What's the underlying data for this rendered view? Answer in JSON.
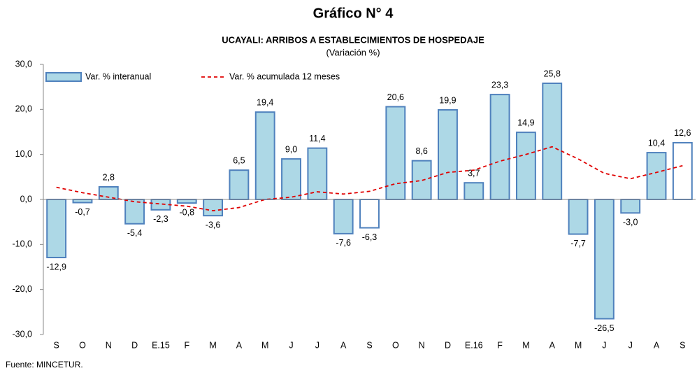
{
  "chart_data": {
    "type": "bar",
    "title": "Gráfico N° 4",
    "subtitle": "UCAYALI: ARRIBOS A ESTABLECIMIENTOS DE HOSPEDAJE",
    "unit_note": "(Variación %)",
    "source": "Fuente: MINCETUR.",
    "categories": [
      "S",
      "O",
      "N",
      "D",
      "E.15",
      "F",
      "M",
      "A",
      "M",
      "J",
      "J",
      "A",
      "S",
      "O",
      "N",
      "D",
      "E.16",
      "F",
      "M",
      "A",
      "M",
      "J",
      "J",
      "A",
      "S"
    ],
    "ylim": [
      -30,
      30
    ],
    "yticks": [
      {
        "value": -30,
        "label": "-30,0"
      },
      {
        "value": -20,
        "label": "-20,0"
      },
      {
        "value": -10,
        "label": "-10,0"
      },
      {
        "value": 0,
        "label": "0,0"
      },
      {
        "value": 10,
        "label": "10,0"
      },
      {
        "value": 20,
        "label": "20,0"
      },
      {
        "value": 30,
        "label": "30,0"
      }
    ],
    "legend": "top-left",
    "series": [
      {
        "name": "Var. % interanual",
        "type": "bar",
        "color": "#add8e6",
        "edgecolor": "#4f81bd",
        "colors": [
          "#add8e6",
          "#add8e6",
          "#add8e6",
          "#add8e6",
          "#add8e6",
          "#add8e6",
          "#add8e6",
          "#add8e6",
          "#add8e6",
          "#add8e6",
          "#add8e6",
          "#add8e6",
          "#ffffff",
          "#add8e6",
          "#add8e6",
          "#add8e6",
          "#add8e6",
          "#add8e6",
          "#add8e6",
          "#add8e6",
          "#add8e6",
          "#add8e6",
          "#add8e6",
          "#add8e6",
          "#ffffff"
        ],
        "values": [
          -12.9,
          -0.7,
          2.8,
          -5.4,
          -2.3,
          -0.8,
          -3.6,
          6.5,
          19.4,
          9.0,
          11.4,
          -7.6,
          -6.3,
          20.6,
          8.6,
          19.9,
          3.7,
          23.3,
          14.9,
          25.8,
          -7.7,
          -26.5,
          -3.0,
          10.4,
          12.6
        ],
        "value_labels": [
          "-12,9",
          "-0,7",
          "2,8",
          "-5,4",
          "-2,3",
          "-0,8",
          "-3,6",
          "6,5",
          "19,4",
          "9,0",
          "11,4",
          "-7,6",
          "-6,3",
          "20,6",
          "8,6",
          "19,9",
          "3,7",
          "23,3",
          "14,9",
          "25,8",
          "-7,7",
          "-26,5",
          "-3,0",
          "10,4",
          "12,6"
        ]
      },
      {
        "name": "Var. % acumulada 12 meses",
        "type": "line",
        "color": "#e00000",
        "values": [
          2.7,
          1.5,
          0.5,
          -0.5,
          -1.0,
          -1.5,
          -2.5,
          -1.8,
          0.0,
          0.5,
          1.7,
          1.2,
          1.8,
          3.5,
          4.2,
          6.0,
          6.5,
          8.5,
          10.0,
          11.7,
          9.0,
          5.8,
          4.6,
          6.0,
          7.5
        ]
      }
    ]
  }
}
